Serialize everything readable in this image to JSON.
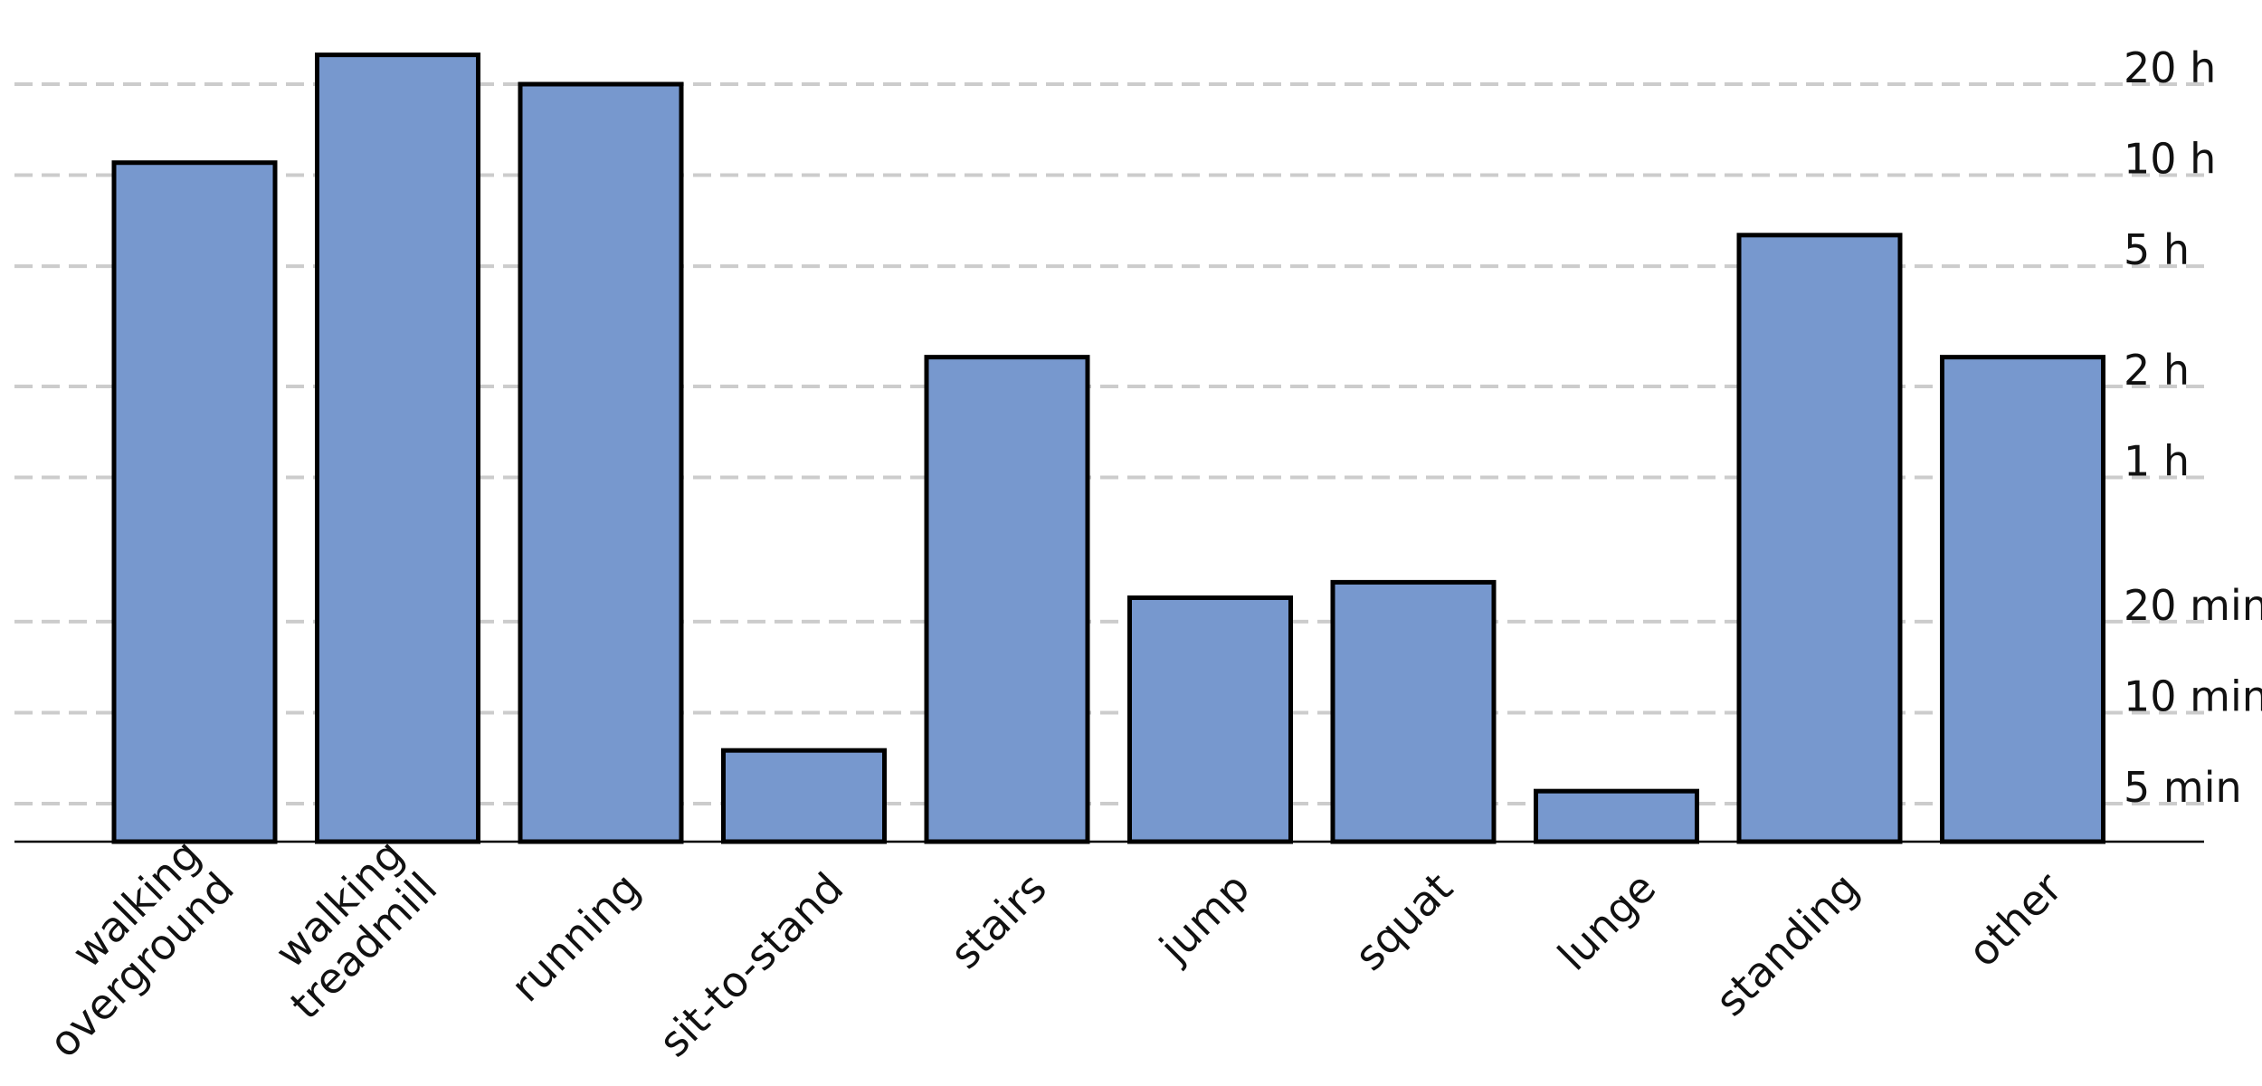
{
  "chart_data": {
    "type": "bar",
    "title": "",
    "xlabel": "",
    "ylabel": "",
    "y_scale": "log",
    "y_unit": "minutes",
    "ylim": [
      3,
      1260
    ],
    "grid": "horizontal dashed",
    "colors": {
      "bar_fill": "#7798ce",
      "bar_stroke": "#000000",
      "grid": "#cccccc"
    },
    "categories": [
      [
        "walking",
        "overground"
      ],
      [
        "walking",
        "treadmill"
      ],
      [
        "running"
      ],
      [
        "sit-to-stand"
      ],
      [
        "stairs"
      ],
      [
        "jump"
      ],
      [
        "squat"
      ],
      [
        "lunge"
      ],
      [
        "standing"
      ],
      [
        "other"
      ]
    ],
    "values": [
      660,
      1500,
      1200,
      7.5,
      150,
      24,
      27,
      5.5,
      380,
      150
    ],
    "y_ticks": [
      {
        "value": 5,
        "label": "5 min"
      },
      {
        "value": 10,
        "label": "10 min"
      },
      {
        "value": 20,
        "label": "20 min"
      },
      {
        "value": 60,
        "label": "1 h"
      },
      {
        "value": 120,
        "label": "2 h"
      },
      {
        "value": 300,
        "label": "5 h"
      },
      {
        "value": 600,
        "label": "10 h"
      },
      {
        "value": 1200,
        "label": "20 h"
      }
    ]
  }
}
